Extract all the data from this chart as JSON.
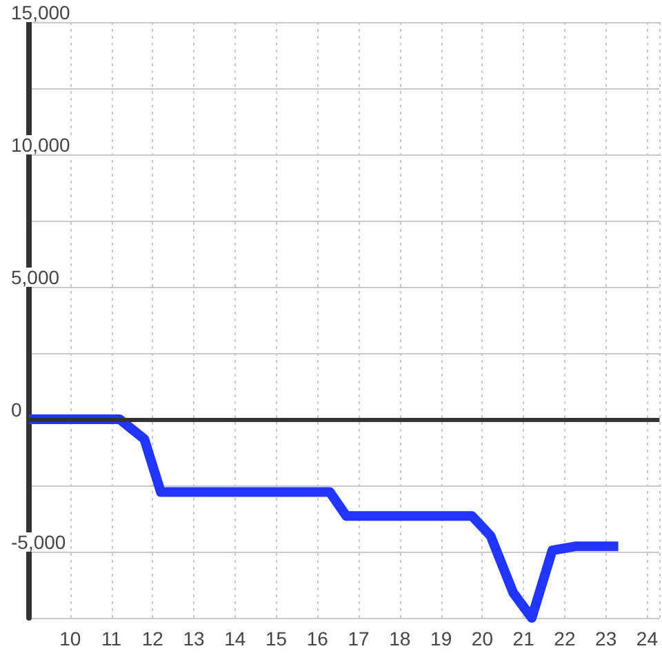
{
  "chart_data": {
    "type": "line",
    "x": [
      9,
      11.2,
      11.8,
      12.2,
      16.3,
      16.7,
      19.75,
      20.2,
      20.75,
      21.2,
      21.7,
      22.25,
      23.3
    ],
    "values": [
      0,
      0,
      -750,
      -2750,
      -2750,
      -3650,
      -3650,
      -4400,
      -6550,
      -7500,
      -4950,
      -4800,
      -4800
    ],
    "color": "#2036ff",
    "xlim": [
      9,
      24.3
    ],
    "xticks": [
      10,
      11,
      12,
      13,
      14,
      15,
      16,
      17,
      18,
      19,
      20,
      21,
      22,
      23,
      24
    ],
    "ylim": [
      -7500,
      15000
    ],
    "yticks": [
      {
        "value": -7500,
        "label": null
      },
      {
        "value": -5000,
        "label": "-5,000"
      },
      {
        "value": -2500,
        "label": null
      },
      0,
      {
        "value": 2500,
        "label": null
      },
      {
        "value": 5000,
        "label": "5,000"
      },
      {
        "value": 7500,
        "label": null
      },
      {
        "value": 10000,
        "label": "10,000"
      },
      {
        "value": 12500,
        "label": null
      },
      {
        "value": 15000,
        "label": "15,000"
      }
    ],
    "grid": true,
    "ref_lines": [
      {
        "axis": "y",
        "value": 0,
        "color": "#333333"
      }
    ]
  }
}
